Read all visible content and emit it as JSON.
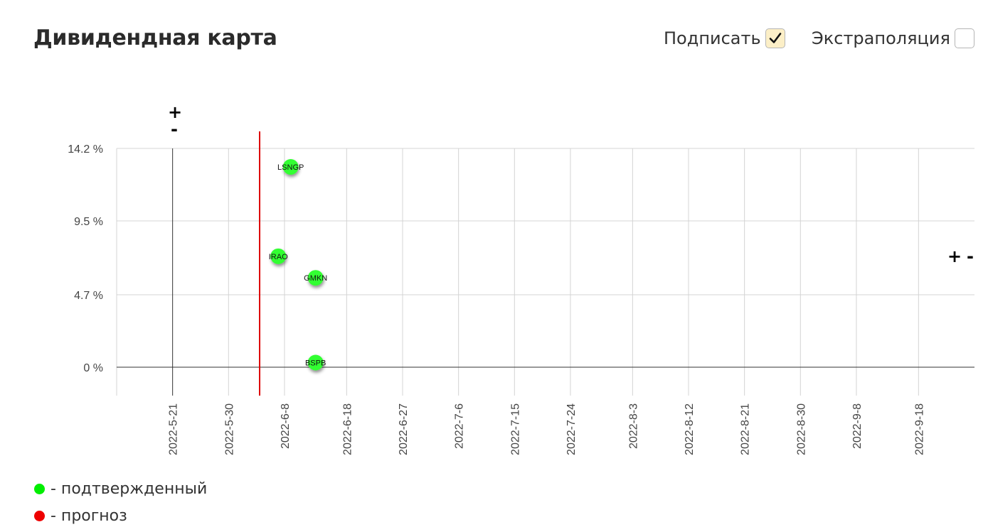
{
  "header": {
    "title": "Дивидендная карта",
    "sign_label": "Подписать",
    "sign_checked": true,
    "extrapolation_label": "Экстраполяция",
    "extrapolation_checked": false
  },
  "zoom": {
    "plus": "+",
    "minus": "-"
  },
  "legend": [
    {
      "color": "#00ee00",
      "label": "- подтвержденный"
    },
    {
      "color": "#ee0000",
      "label": "- прогноз"
    }
  ],
  "chart_data": {
    "type": "scatter",
    "title": "",
    "xlabel": "",
    "ylabel": "",
    "x_ticks": [
      "2022-5-21",
      "2022-5-30",
      "2022-6-8",
      "2022-6-18",
      "2022-6-27",
      "2022-7-6",
      "2022-7-15",
      "2022-7-24",
      "2022-8-3",
      "2022-8-12",
      "2022-8-21",
      "2022-8-30",
      "2022-9-8",
      "2022-9-18"
    ],
    "y_ticks": [
      "0 %",
      "4.7 %",
      "9.5 %",
      "14.2 %"
    ],
    "ylim": [
      0,
      14.2
    ],
    "xlim": [
      "2022-5-12",
      "2022-9-27"
    ],
    "today": "2022-6-4",
    "today_color": "#dd0000",
    "grid": true,
    "series": [
      {
        "name": "подтвержденный",
        "color": "#33ff33",
        "points": [
          {
            "label": "LSNGP",
            "x": "2022-6-9",
            "y": 13.0
          },
          {
            "label": "IRAO",
            "x": "2022-6-7",
            "y": 7.2
          },
          {
            "label": "GMKN",
            "x": "2022-6-13",
            "y": 5.8
          },
          {
            "label": "BSPB",
            "x": "2022-6-13",
            "y": 0.3
          }
        ]
      }
    ]
  }
}
